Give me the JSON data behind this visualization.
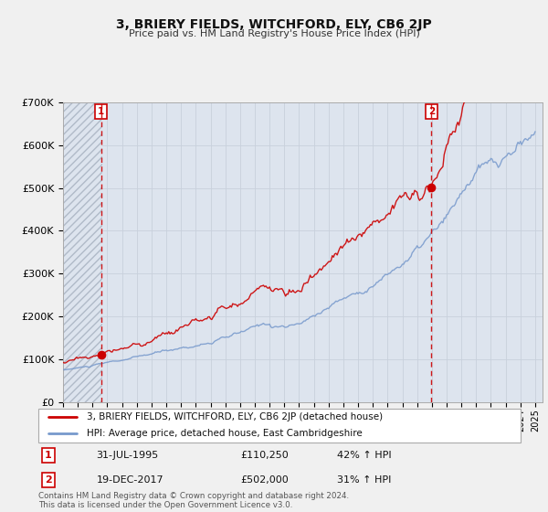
{
  "title": "3, BRIERY FIELDS, WITCHFORD, ELY, CB6 2JP",
  "subtitle": "Price paid vs. HM Land Registry's House Price Index (HPI)",
  "legend_line1": "3, BRIERY FIELDS, WITCHFORD, ELY, CB6 2JP (detached house)",
  "legend_line2": "HPI: Average price, detached house, East Cambridgeshire",
  "annotation1_label": "1",
  "annotation1_date": "31-JUL-1995",
  "annotation1_price": "£110,250",
  "annotation1_hpi": "42% ↑ HPI",
  "annotation2_label": "2",
  "annotation2_date": "19-DEC-2017",
  "annotation2_price": "£502,000",
  "annotation2_hpi": "31% ↑ HPI",
  "footer": "Contains HM Land Registry data © Crown copyright and database right 2024.\nThis data is licensed under the Open Government Licence v3.0.",
  "sale1_year": 1995.58,
  "sale1_price": 110250,
  "sale2_year": 2017.97,
  "sale2_price": 502000,
  "grid_color": "#c8d0dc",
  "red_color": "#cc0000",
  "blue_color": "#7799cc",
  "plot_bg": "#dde4ee",
  "fig_bg": "#f0f0f0",
  "hatch_color": "#b0bac8",
  "ylim_max": 700000,
  "ylim_min": 0
}
